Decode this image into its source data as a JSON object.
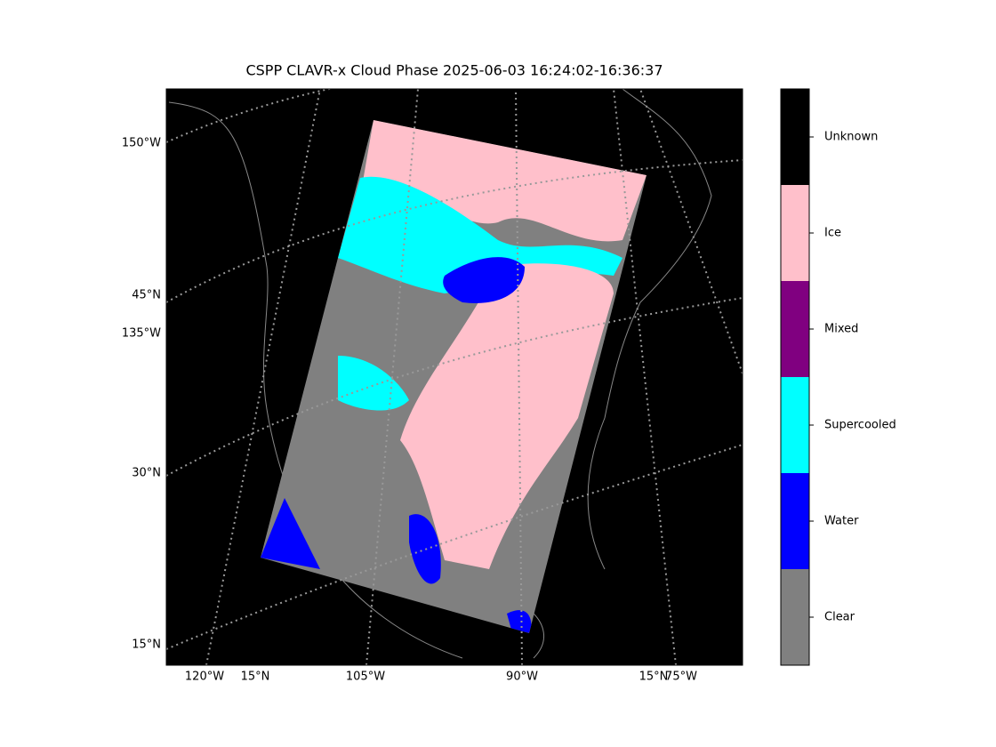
{
  "title": "CSPP CLAVR-x Cloud Phase 2025-06-03 16:24:02-16:36:37",
  "map": {
    "left_labels": [
      "150°W",
      "45°N",
      "135°W",
      "30°N",
      "15°N"
    ],
    "bottom_labels": [
      "120°W",
      "15°N",
      "105°W",
      "90°W",
      "15°N",
      "75°W"
    ]
  },
  "colorbar": {
    "classes": [
      {
        "label": "Unknown",
        "color": "#000000"
      },
      {
        "label": "Ice",
        "color": "#ffc0cb"
      },
      {
        "label": "Mixed",
        "color": "#800080"
      },
      {
        "label": "Supercooled",
        "color": "#00ffff"
      },
      {
        "label": "Water",
        "color": "#0000ff"
      },
      {
        "label": "Clear",
        "color": "#808080"
      }
    ]
  }
}
